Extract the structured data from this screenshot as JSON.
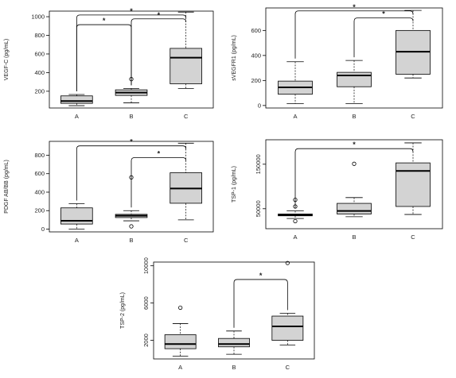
{
  "chart_data": [
    {
      "type": "box",
      "ylabel": "VEGF-C (pg/mL)",
      "categories": [
        "A",
        "B",
        "C"
      ],
      "yticks": [
        200,
        400,
        600,
        800,
        1000
      ],
      "ylim": [
        20,
        1060
      ],
      "boxes": [
        {
          "name": "A",
          "min": 45,
          "q1": 70,
          "median": 95,
          "q3": 150,
          "max": 165,
          "outliers": []
        },
        {
          "name": "B",
          "min": 75,
          "q1": 155,
          "median": 185,
          "q3": 215,
          "max": 230,
          "outliers": [
            330
          ]
        },
        {
          "name": "C",
          "min": 230,
          "q1": 280,
          "median": 560,
          "q3": 660,
          "max": 1050,
          "outliers": []
        }
      ],
      "significance": [
        {
          "from": "A",
          "to": "B",
          "level": 0.86,
          "label": "*"
        },
        {
          "from": "B",
          "to": "C",
          "level": 0.92,
          "label": "*"
        },
        {
          "from": "A",
          "to": "C",
          "level": 0.96,
          "label": "*"
        }
      ]
    },
    {
      "type": "box",
      "ylabel": "sVEGFR1 (pg/mL)",
      "categories": [
        "A",
        "B",
        "C"
      ],
      "yticks": [
        0,
        200,
        400,
        600
      ],
      "ylim": [
        -20,
        780
      ],
      "boxes": [
        {
          "name": "A",
          "min": 15,
          "q1": 90,
          "median": 145,
          "q3": 195,
          "max": 350,
          "outliers": []
        },
        {
          "name": "B",
          "min": 15,
          "q1": 150,
          "median": 240,
          "q3": 265,
          "max": 360,
          "outliers": []
        },
        {
          "name": "C",
          "min": 220,
          "q1": 250,
          "median": 430,
          "q3": 600,
          "max": 760,
          "outliers": []
        }
      ],
      "significance": [
        {
          "from": "B",
          "to": "C",
          "level": 0.9,
          "label": "*"
        },
        {
          "from": "A",
          "to": "C",
          "level": 0.97,
          "label": "*"
        }
      ]
    },
    {
      "type": "box",
      "ylabel": "PDGF AB/BB (pg/mL)",
      "categories": [
        "A",
        "B",
        "C"
      ],
      "yticks": [
        0,
        200,
        400,
        600,
        800
      ],
      "ylim": [
        -30,
        950
      ],
      "boxes": [
        {
          "name": "A",
          "min": 0,
          "q1": 55,
          "median": 90,
          "q3": 230,
          "max": 275,
          "outliers": []
        },
        {
          "name": "B",
          "min": 90,
          "q1": 125,
          "median": 145,
          "q3": 160,
          "max": 200,
          "outliers": [
            560,
            30
          ]
        },
        {
          "name": "C",
          "min": 100,
          "q1": 280,
          "median": 440,
          "q3": 610,
          "max": 930,
          "outliers": []
        }
      ],
      "significance": [
        {
          "from": "B",
          "to": "C",
          "level": 0.82,
          "label": "*"
        },
        {
          "from": "A",
          "to": "C",
          "level": 0.95,
          "label": "*"
        }
      ]
    },
    {
      "type": "box",
      "ylabel": "TSP-1 (pg/mL)",
      "categories": [
        "A",
        "B",
        "C"
      ],
      "yticks": [
        50000,
        150000
      ],
      "ylim": [
        5000,
        205000
      ],
      "boxes": [
        {
          "name": "A",
          "min": 28000,
          "q1": 34000,
          "median": 36000,
          "q3": 38000,
          "max": 45000,
          "outliers": [
            70000,
            55000,
            22000
          ]
        },
        {
          "name": "B",
          "min": 32000,
          "q1": 38000,
          "median": 45000,
          "q3": 62000,
          "max": 75000,
          "outliers": [
            151000
          ]
        },
        {
          "name": "C",
          "min": 37000,
          "q1": 55000,
          "median": 135000,
          "q3": 153000,
          "max": 198000,
          "outliers": []
        }
      ],
      "significance": [
        {
          "from": "A",
          "to": "C",
          "level": 0.9,
          "label": "*"
        }
      ]
    },
    {
      "type": "box",
      "ylabel": "TSP-2 (pg/mL)",
      "categories": [
        "A",
        "B",
        "C"
      ],
      "yticks": [
        2000,
        6000,
        10000
      ],
      "ylim": [
        0,
        10400
      ],
      "boxes": [
        {
          "name": "A",
          "min": 300,
          "q1": 1100,
          "median": 1600,
          "q3": 2600,
          "max": 3800,
          "outliers": [
            5500
          ]
        },
        {
          "name": "B",
          "min": 500,
          "q1": 1300,
          "median": 1600,
          "q3": 2200,
          "max": 3000,
          "outliers": []
        },
        {
          "name": "C",
          "min": 1500,
          "q1": 2000,
          "median": 3500,
          "q3": 4600,
          "max": 4900,
          "outliers": [
            10300
          ]
        }
      ],
      "significance": [
        {
          "from": "B",
          "to": "C",
          "level": 0.82,
          "label": "*"
        }
      ]
    }
  ]
}
